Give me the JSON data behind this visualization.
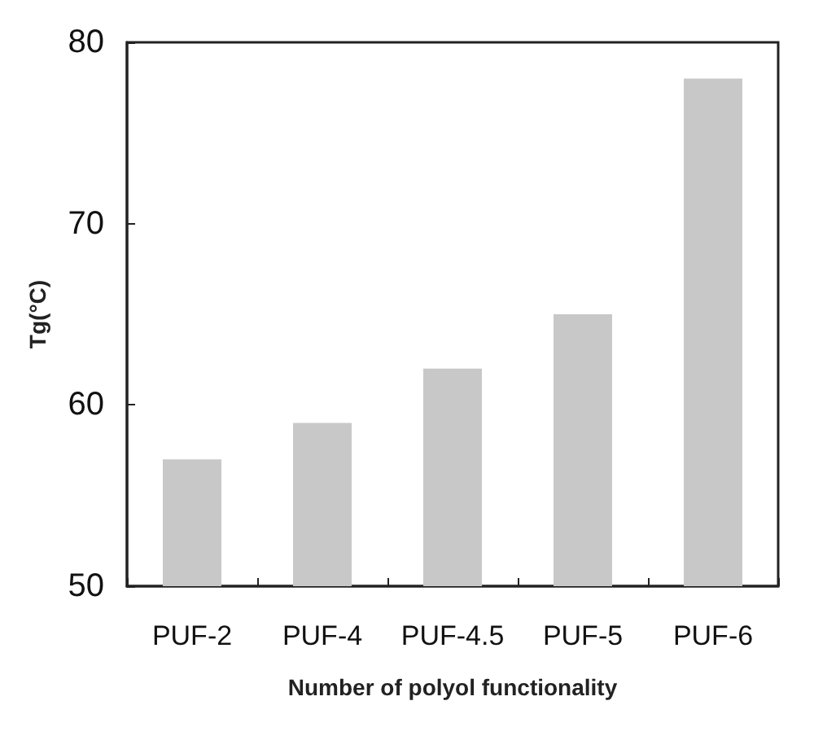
{
  "chart_data": {
    "type": "bar",
    "categories": [
      "PUF-2",
      "PUF-4",
      "PUF-4.5",
      "PUF-5",
      "PUF-6"
    ],
    "values": [
      57,
      59,
      62,
      65,
      78
    ],
    "color": "#c8c8c8",
    "xlabel": "Number of polyol functionality",
    "ylabel": "Tg(°C)",
    "ylim": [
      50,
      80
    ],
    "yticks": [
      50,
      60,
      70,
      80
    ],
    "grid": false
  }
}
